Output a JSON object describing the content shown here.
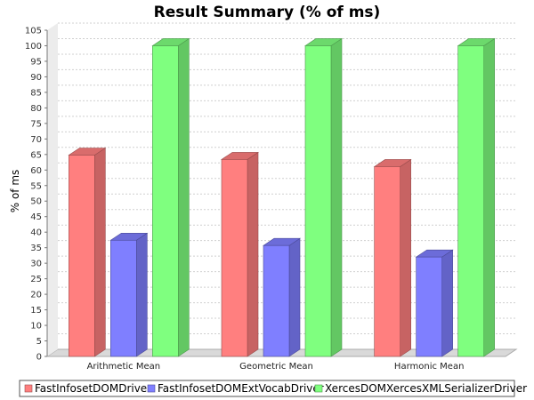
{
  "chart_data": {
    "type": "bar",
    "title": "Result Summary (% of ms)",
    "xlabel": "",
    "ylabel": "% of ms",
    "ylim": [
      0,
      105
    ],
    "ytick_step": 5,
    "grid": true,
    "legend_position": "bottom",
    "categories": [
      "Arithmetic Mean",
      "Geometric Mean",
      "Harmonic Mean"
    ],
    "series": [
      {
        "name": "FastInfosetDOMDriver",
        "color": "#ff7f7f",
        "values": [
          64.8,
          63.4,
          61.1
        ]
      },
      {
        "name": "FastInfosetDOMExtVocabDriver",
        "color": "#7f7fff",
        "values": [
          37.4,
          35.7,
          32.0
        ]
      },
      {
        "name": "XercesDOMXercesXMLSerializerDriver",
        "color": "#7fff7f",
        "values": [
          100,
          100,
          100
        ]
      }
    ]
  }
}
